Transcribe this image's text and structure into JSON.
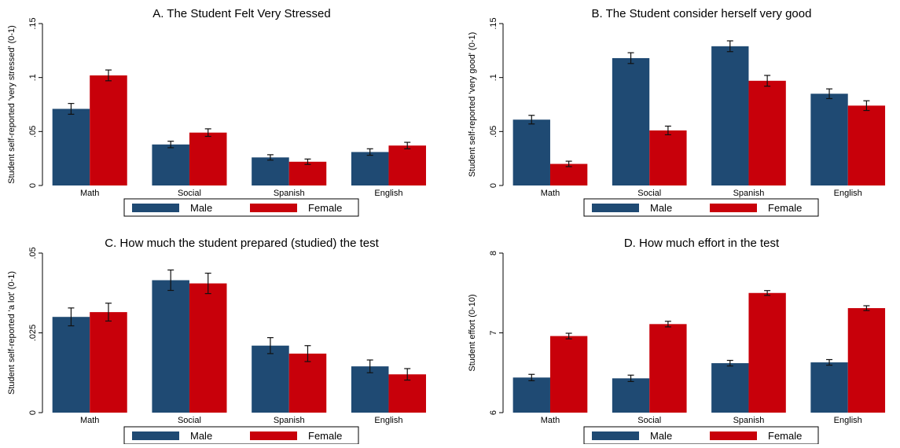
{
  "colors": {
    "male": "#1f4a73",
    "female": "#c8000a"
  },
  "chart_data": [
    {
      "type": "bar",
      "title": "A. The Student Felt Very Stressed",
      "ylabel": "Student self-reported 'very stressed' (0-1)",
      "categories": [
        "Math",
        "Social",
        "Spanish",
        "English"
      ],
      "yticks": [
        0,
        0.05,
        0.1,
        0.15
      ],
      "ytick_labels": [
        "0",
        ".05",
        ".1",
        ".15"
      ],
      "ylim": [
        0,
        0.15
      ],
      "legend": "bottom",
      "grid": false,
      "series": [
        {
          "name": "Male",
          "values": [
            0.071,
            0.038,
            0.026,
            0.031
          ],
          "err": [
            0.005,
            0.003,
            0.0025,
            0.003
          ]
        },
        {
          "name": "Female",
          "values": [
            0.102,
            0.049,
            0.022,
            0.037
          ],
          "err": [
            0.005,
            0.0035,
            0.0025,
            0.003
          ]
        }
      ]
    },
    {
      "type": "bar",
      "title": "B. The Student consider herself very good",
      "ylabel": "Student self-reported 'very good' (0-1)",
      "categories": [
        "Math",
        "Social",
        "Spanish",
        "English"
      ],
      "yticks": [
        0,
        0.05,
        0.1,
        0.15
      ],
      "ytick_labels": [
        "0",
        ".05",
        ".1",
        ".15"
      ],
      "ylim": [
        0,
        0.15
      ],
      "legend": "bottom",
      "grid": false,
      "series": [
        {
          "name": "Male",
          "values": [
            0.061,
            0.118,
            0.129,
            0.085
          ],
          "err": [
            0.004,
            0.005,
            0.005,
            0.0045
          ]
        },
        {
          "name": "Female",
          "values": [
            0.02,
            0.051,
            0.097,
            0.074
          ],
          "err": [
            0.0025,
            0.004,
            0.005,
            0.0045
          ]
        }
      ]
    },
    {
      "type": "bar",
      "title": "C. How much the student prepared (studied) the test",
      "ylabel": "Student self-reported 'a lot' (0-1)",
      "categories": [
        "Math",
        "Social",
        "Spanish",
        "English"
      ],
      "yticks": [
        0,
        0.025,
        0.05
      ],
      "ytick_labels": [
        "0",
        ".025",
        ".05"
      ],
      "ylim": [
        0,
        0.05
      ],
      "legend": "bottom",
      "grid": false,
      "series": [
        {
          "name": "Male",
          "values": [
            0.03,
            0.0415,
            0.021,
            0.0145
          ],
          "err": [
            0.0028,
            0.0032,
            0.0025,
            0.002
          ]
        },
        {
          "name": "Female",
          "values": [
            0.0315,
            0.0405,
            0.0185,
            0.012
          ],
          "err": [
            0.0028,
            0.0032,
            0.0025,
            0.0018
          ]
        }
      ]
    },
    {
      "type": "bar",
      "title": "D. How much effort in the test",
      "ylabel": "Student effort (0-10)",
      "categories": [
        "Math",
        "Social",
        "Spanish",
        "English"
      ],
      "yticks": [
        6,
        7,
        8
      ],
      "ytick_labels": [
        "6",
        "7",
        "8"
      ],
      "ylim": [
        6,
        8
      ],
      "legend": "bottom",
      "grid": false,
      "series": [
        {
          "name": "Male",
          "values": [
            6.44,
            6.43,
            6.62,
            6.63
          ],
          "err": [
            0.04,
            0.04,
            0.035,
            0.035
          ]
        },
        {
          "name": "Female",
          "values": [
            6.96,
            7.11,
            7.5,
            7.31
          ],
          "err": [
            0.035,
            0.035,
            0.03,
            0.03
          ]
        }
      ]
    }
  ]
}
